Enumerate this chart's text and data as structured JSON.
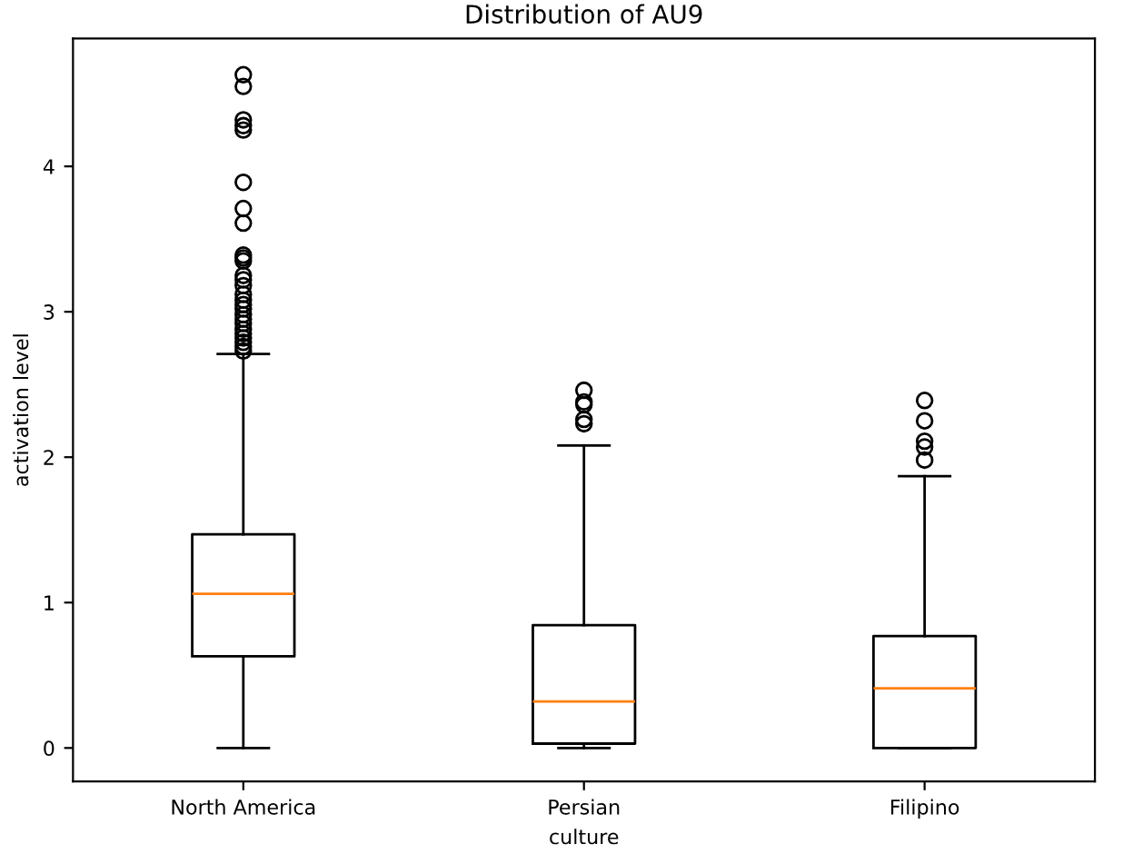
{
  "chart_data": {
    "type": "box",
    "title": "Distribution of AU9",
    "xlabel": "culture",
    "ylabel": "activation level",
    "categories": [
      "North America",
      "Persian",
      "Filipino"
    ],
    "boxes": [
      {
        "low": 0,
        "q1": 0.63,
        "median": 1.06,
        "q3": 1.47,
        "high": 2.71,
        "outliers": [
          4.63,
          4.55,
          4.32,
          4.28,
          4.25,
          3.89,
          3.71,
          3.61,
          3.39,
          3.37,
          3.35,
          3.25,
          3.22,
          3.18,
          3.12,
          3.08,
          3.05,
          3.02,
          2.98,
          2.95,
          2.92,
          2.88,
          2.85,
          2.82,
          2.79,
          2.76,
          2.73
        ]
      },
      {
        "low": 0,
        "q1": 0.03,
        "median": 0.32,
        "q3": 0.845,
        "high": 2.08,
        "outliers": [
          2.46,
          2.38,
          2.36,
          2.26,
          2.23
        ]
      },
      {
        "low": 0,
        "q1": 0,
        "median": 0.41,
        "q3": 0.77,
        "high": 1.87,
        "outliers": [
          2.39,
          2.25,
          2.11,
          2.07,
          1.98
        ]
      }
    ],
    "ylim": [
      -0.23,
      4.88
    ],
    "yticks": [
      0,
      1,
      2,
      3,
      4
    ],
    "grid": false
  }
}
